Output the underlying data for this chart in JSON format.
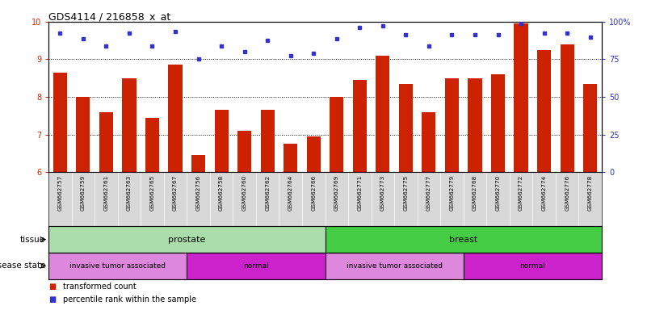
{
  "title": "GDS4114 / 216858_x_at",
  "samples": [
    "GSM662757",
    "GSM662759",
    "GSM662761",
    "GSM662763",
    "GSM662765",
    "GSM662767",
    "GSM662756",
    "GSM662758",
    "GSM662760",
    "GSM662762",
    "GSM662764",
    "GSM662766",
    "GSM662769",
    "GSM662771",
    "GSM662773",
    "GSM662775",
    "GSM662777",
    "GSM662779",
    "GSM662768",
    "GSM662770",
    "GSM662772",
    "GSM662774",
    "GSM662776",
    "GSM662778"
  ],
  "bar_values": [
    8.65,
    8.0,
    7.6,
    8.5,
    7.45,
    8.85,
    6.45,
    7.65,
    7.1,
    7.65,
    6.75,
    6.95,
    8.0,
    8.45,
    9.1,
    8.35,
    7.6,
    8.5,
    8.5,
    8.6,
    9.95,
    9.25,
    9.4,
    8.35
  ],
  "dot_values": [
    9.7,
    9.55,
    9.35,
    9.7,
    9.35,
    9.75,
    9.0,
    9.35,
    9.2,
    9.5,
    9.1,
    9.15,
    9.55,
    9.85,
    9.9,
    9.65,
    9.35,
    9.65,
    9.65,
    9.65,
    9.95,
    9.7,
    9.7,
    9.6
  ],
  "ylim": [
    6,
    10
  ],
  "yticks_left": [
    6,
    7,
    8,
    9,
    10
  ],
  "yticks_right_vals": [
    0,
    25,
    50,
    75,
    100
  ],
  "yticks_right_labels": [
    "0",
    "25",
    "50",
    "75",
    "100%"
  ],
  "bar_color": "#cc2200",
  "dot_color": "#3333cc",
  "grid_color": "#888888",
  "tick_bg_color": "#d8d8d8",
  "tissue_groups": [
    {
      "label": "prostate",
      "start": 0,
      "end": 12,
      "color": "#aaddaa"
    },
    {
      "label": "breast",
      "start": 12,
      "end": 24,
      "color": "#44cc44"
    }
  ],
  "disease_groups": [
    {
      "label": "invasive tumor associated",
      "start": 0,
      "end": 6,
      "color": "#dd88dd"
    },
    {
      "label": "normal",
      "start": 6,
      "end": 12,
      "color": "#cc22cc"
    },
    {
      "label": "invasive tumor associated",
      "start": 12,
      "end": 18,
      "color": "#dd88dd"
    },
    {
      "label": "normal",
      "start": 18,
      "end": 24,
      "color": "#cc22cc"
    }
  ],
  "legend_bar_label": "transformed count",
  "legend_dot_label": "percentile rank within the sample",
  "tissue_label": "tissue",
  "disease_label": "disease state"
}
